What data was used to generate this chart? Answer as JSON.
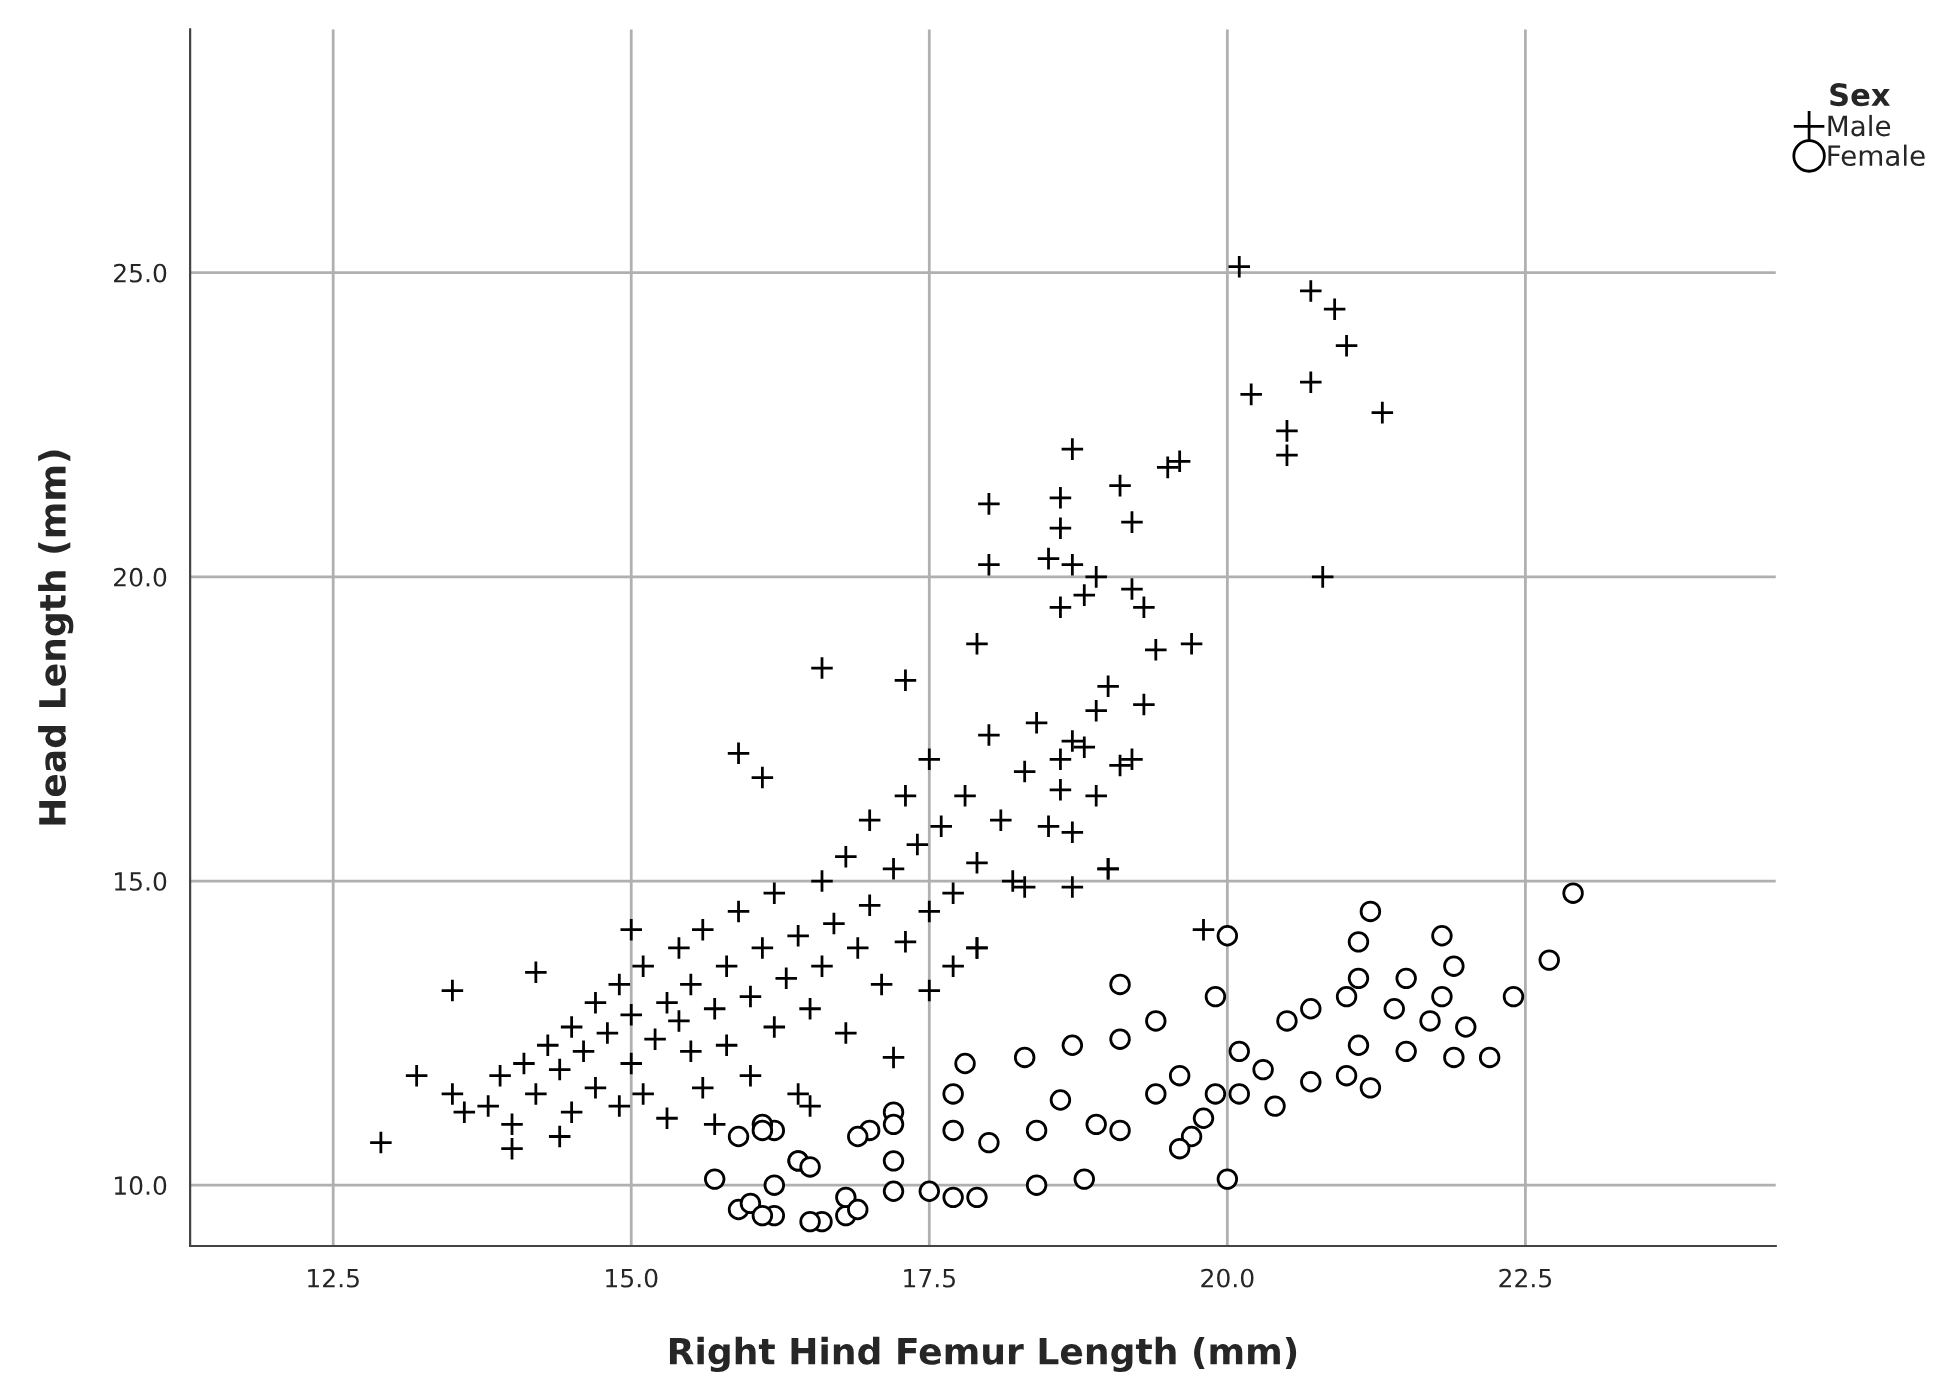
{
  "chart_data": {
    "type": "scatter",
    "xlabel": "Right Hind Femur Length (mm)",
    "ylabel": "Head Length (mm)",
    "legend_title": "Sex",
    "xlim": [
      11.3,
      24.6
    ],
    "ylim": [
      9.0,
      29.0
    ],
    "xticks": [
      12.5,
      {
        "value": 15,
        "label": "15.0"
      },
      17.5,
      {
        "value": 20,
        "label": "20.0"
      },
      22.5
    ],
    "yticks": [
      {
        "value": 10,
        "label": "10.0"
      },
      {
        "value": 15,
        "label": "15.0"
      },
      {
        "value": 20,
        "label": "20.0"
      },
      {
        "value": 25,
        "label": "25.0"
      }
    ],
    "grid": true,
    "legend": "top right",
    "series": [
      {
        "name": "Male",
        "color": "#000000",
        "marker": "cross",
        "x": [
          12.9,
          13.2,
          13.5,
          13.5,
          13.6,
          14.0,
          14.2,
          15.0,
          15.9,
          16.1,
          16.6,
          17.3,
          17.2,
          17.9,
          17.7,
          17.5,
          20.1,
          20.7,
          20.9,
          21.0,
          20.7,
          20.2,
          21.3,
          20.5,
          20.5,
          20.8,
          18.7,
          18.0,
          18.6,
          19.1,
          19.5,
          19.6,
          19.2,
          18.6,
          18.0,
          18.5,
          18.7,
          18.9,
          19.2,
          19.3,
          18.8,
          18.6,
          19.7,
          19.4,
          17.9,
          18.6,
          18.8,
          18.9,
          19.3,
          19.1,
          19.0,
          18.7,
          18.3,
          19.8,
          19.0,
          18.7,
          17.9,
          13.8,
          13.9,
          14.0,
          14.1,
          14.2,
          14.3,
          14.4,
          14.4,
          14.5,
          14.5,
          14.6,
          14.7,
          14.7,
          14.8,
          14.9,
          14.9,
          15.0,
          15.0,
          15.1,
          15.1,
          15.2,
          15.3,
          15.3,
          15.4,
          15.4,
          15.5,
          15.5,
          15.6,
          15.6,
          15.7,
          15.8,
          15.8,
          15.9,
          16.0,
          16.0,
          16.1,
          16.2,
          16.2,
          16.3,
          16.4,
          16.4,
          16.5,
          16.6,
          16.6,
          16.7,
          16.8,
          16.8,
          16.9,
          17.0,
          17.0,
          17.1,
          17.2,
          17.3,
          17.3,
          17.4,
          17.5,
          17.5,
          17.6,
          17.7,
          17.8,
          17.9,
          18.0,
          18.1,
          18.2,
          18.3,
          18.4,
          18.5,
          18.6,
          18.7,
          18.9,
          19.0,
          19.2,
          15.7,
          16.5
        ],
        "values": [
          10.7,
          11.8,
          13.2,
          11.5,
          11.2,
          10.6,
          13.5,
          14.2,
          17.1,
          16.7,
          18.5,
          18.3,
          12.1,
          13.9,
          13.6,
          13.2,
          25.1,
          24.7,
          24.4,
          23.8,
          23.2,
          23.0,
          22.7,
          22.4,
          22.0,
          20.0,
          22.1,
          21.2,
          21.3,
          21.5,
          21.8,
          21.9,
          20.9,
          20.8,
          20.2,
          20.3,
          20.2,
          20.0,
          19.8,
          19.5,
          19.7,
          19.5,
          18.9,
          18.8,
          18.9,
          17.0,
          17.2,
          17.8,
          17.9,
          16.9,
          15.2,
          15.8,
          14.9,
          14.2,
          15.2,
          14.9,
          13.9,
          11.3,
          11.8,
          11.0,
          12.0,
          11.5,
          12.3,
          10.8,
          11.9,
          12.6,
          11.2,
          12.2,
          13.0,
          11.6,
          12.5,
          11.3,
          13.3,
          12.0,
          12.8,
          13.6,
          11.5,
          12.4,
          13.0,
          11.1,
          12.7,
          13.9,
          12.2,
          13.3,
          11.6,
          14.2,
          12.9,
          13.6,
          12.3,
          14.5,
          13.1,
          11.8,
          13.9,
          12.6,
          14.8,
          13.4,
          11.5,
          14.1,
          12.9,
          15.0,
          13.6,
          14.3,
          12.5,
          15.4,
          13.9,
          14.6,
          16.0,
          13.3,
          15.2,
          14.0,
          16.4,
          15.6,
          14.5,
          17.0,
          15.9,
          14.8,
          16.4,
          15.3,
          17.4,
          16.0,
          15.0,
          16.8,
          17.6,
          15.9,
          16.5,
          17.3,
          16.4,
          18.2,
          17.0,
          11.0,
          11.3
        ]
      },
      {
        "name": "Female",
        "color": "#000000",
        "marker": "circle",
        "x": [
          22.9,
          22.7,
          22.4,
          22.2,
          21.9,
          21.8,
          21.8,
          21.9,
          22.0,
          21.7,
          21.5,
          21.5,
          21.4,
          21.2,
          21.1,
          21.1,
          21.0,
          21.1,
          21.2,
          21.0,
          20.7,
          20.7,
          20.5,
          20.4,
          20.0,
          20.0,
          19.9,
          19.9,
          19.8,
          19.7,
          19.6,
          19.1,
          19.4,
          19.1,
          19.1,
          18.9,
          18.7,
          18.3,
          17.8,
          17.7,
          17.2,
          17.0,
          16.4,
          16.6,
          16.2,
          16.2,
          16.2,
          16.8,
          16.8,
          17.7,
          17.9,
          18.4,
          18.8,
          17.5,
          18.0,
          18.6,
          18.4,
          19.4,
          19.6,
          20.1,
          20.3,
          20.1,
          17.7,
          17.2,
          15.7,
          15.9,
          16.1,
          16.1,
          15.9,
          16.0,
          16.1,
          16.5,
          16.4,
          16.5,
          16.9,
          17.2,
          17.2,
          16.9
        ],
        "values": [
          14.8,
          13.7,
          13.1,
          12.1,
          13.6,
          14.1,
          13.1,
          12.1,
          12.6,
          12.7,
          13.4,
          12.2,
          12.9,
          14.5,
          14.0,
          13.4,
          13.1,
          12.3,
          11.6,
          11.8,
          12.9,
          11.7,
          12.7,
          11.3,
          14.1,
          10.1,
          13.1,
          11.5,
          11.1,
          10.8,
          10.6,
          13.3,
          12.7,
          12.4,
          10.9,
          11.0,
          12.3,
          12.1,
          12.0,
          11.5,
          11.2,
          10.9,
          10.4,
          9.4,
          10.0,
          10.9,
          9.5,
          9.5,
          9.8,
          9.8,
          9.8,
          10.0,
          10.1,
          9.9,
          10.7,
          11.4,
          10.9,
          11.5,
          11.8,
          12.2,
          11.9,
          11.5,
          10.9,
          10.4,
          10.1,
          10.8,
          11.0,
          10.9,
          9.6,
          9.7,
          9.5,
          9.4,
          10.4,
          10.3,
          9.6,
          9.9,
          11.0,
          10.8
        ]
      }
    ]
  }
}
